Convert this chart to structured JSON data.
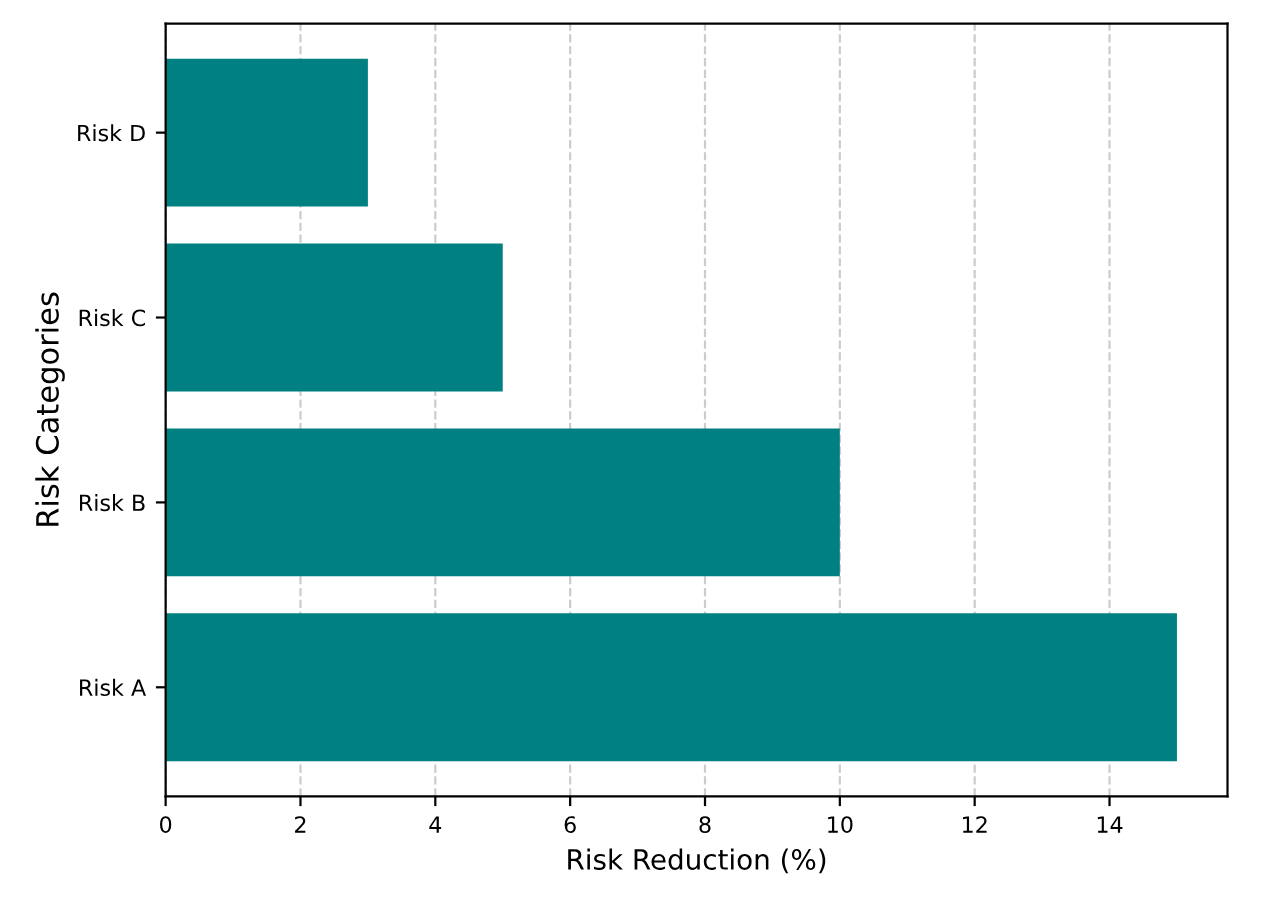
{
  "chart_data": {
    "type": "bar",
    "orientation": "horizontal",
    "xlabel": "Risk Reduction (%)",
    "ylabel": "Risk Categories",
    "categories": [
      "Risk D",
      "Risk C",
      "Risk B",
      "Risk A"
    ],
    "values": [
      3,
      5,
      10,
      15
    ],
    "color": "#008080",
    "xlim": [
      0,
      15.75
    ],
    "xticks": [
      0,
      2,
      4,
      6,
      8,
      10,
      12,
      14
    ],
    "grid": "x"
  }
}
